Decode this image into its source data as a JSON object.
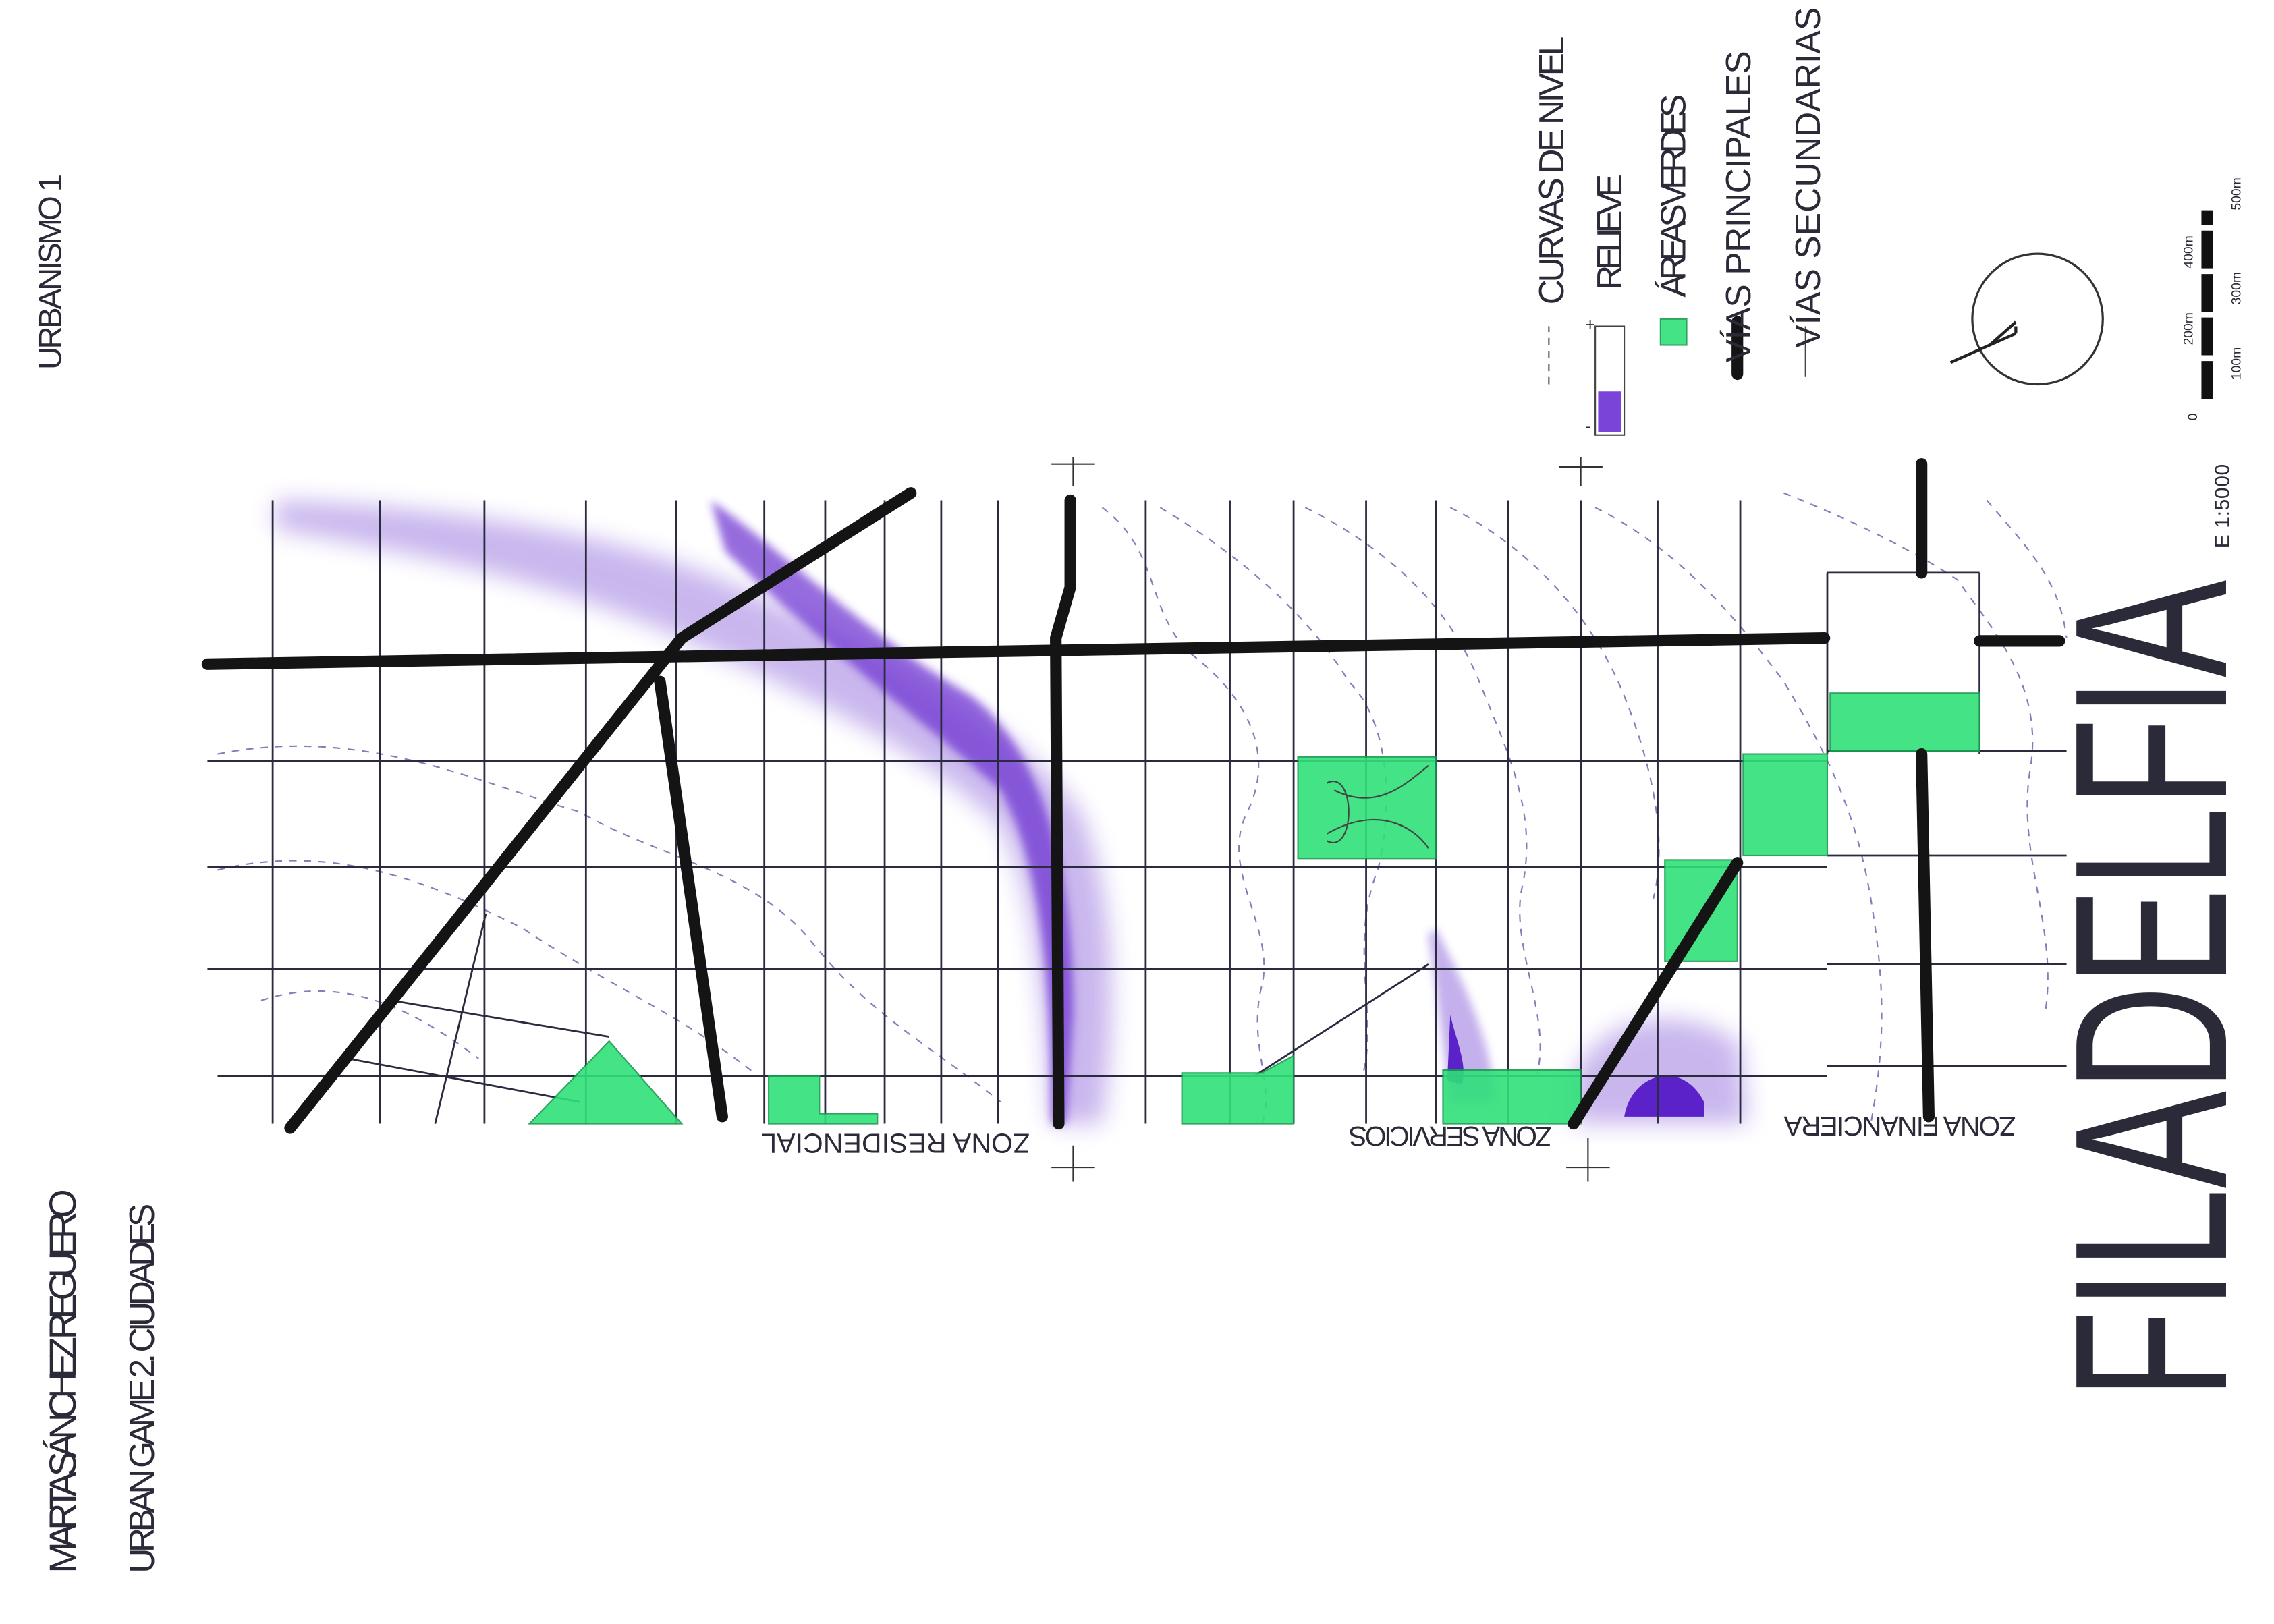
{
  "header": {
    "course": "URBANISMO 1",
    "author": "MARTA SÁNCHEZ REGUERO",
    "project": "URBAN GAME 2. CIUDADES"
  },
  "title": "FILADELFIA",
  "legend": {
    "items": [
      "CURVAS DE NIVEL",
      "RELIEVE",
      "ÁREAS VERDES",
      "VÍAS PRINCIPALES",
      "VÍAS SECUNDARIAS"
    ],
    "relief_high": "+",
    "relief_low": "-"
  },
  "zones": [
    "ZONA RESIDENCIAL",
    "ZONA SERVICIOS",
    "ZONA FINANCIERA"
  ],
  "scale": {
    "label": "E 1:5000",
    "bar_labels": [
      "0",
      "100m",
      "200m",
      "300m",
      "400m",
      "500m"
    ]
  }
}
